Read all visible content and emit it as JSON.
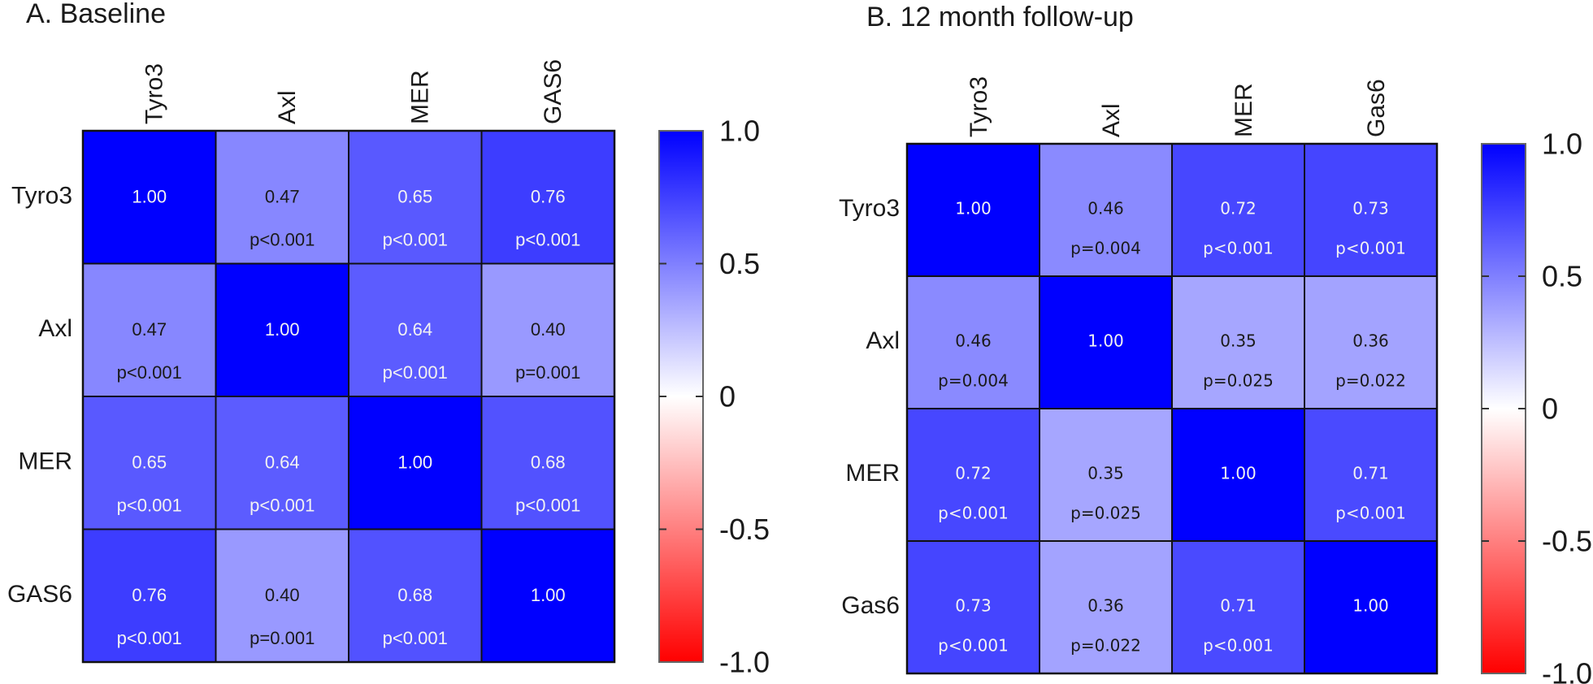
{
  "chart_data": [
    {
      "type": "heatmap",
      "title": "A. Baseline",
      "variables_x": [
        "Tyro3",
        "Axl",
        "MER",
        "GAS6"
      ],
      "variables_y": [
        "Tyro3",
        "Axl",
        "MER",
        "GAS6"
      ],
      "values": [
        [
          1.0,
          0.47,
          0.65,
          0.76
        ],
        [
          0.47,
          1.0,
          0.64,
          0.4
        ],
        [
          0.65,
          0.64,
          1.0,
          0.68
        ],
        [
          0.76,
          0.4,
          0.68,
          1.0
        ]
      ],
      "value_labels": [
        [
          "1.00",
          "0.47",
          "0.65",
          "0.76"
        ],
        [
          "0.47",
          "1.00",
          "0.64",
          "0.40"
        ],
        [
          "0.65",
          "0.64",
          "1.00",
          "0.68"
        ],
        [
          "0.76",
          "0.40",
          "0.68",
          "1.00"
        ]
      ],
      "p_values": [
        [
          "",
          "p<0.001",
          "p<0.001",
          "p<0.001"
        ],
        [
          "p<0.001",
          "",
          "p<0.001",
          "p=0.001"
        ],
        [
          "p<0.001",
          "p<0.001",
          "",
          "p<0.001"
        ],
        [
          "p<0.001",
          "p=0.001",
          "p<0.001",
          ""
        ]
      ],
      "colorbar": {
        "range": [
          -1.0,
          1.0
        ],
        "ticks": [
          1.0,
          0.5,
          0,
          -0.5,
          -1.0
        ],
        "tick_labels": [
          "1.0",
          "0.5",
          "0",
          "-0.5",
          "-1.0"
        ],
        "colors": {
          "max": "#0000ff",
          "mid": "#ffffff",
          "min": "#ff0000"
        },
        "placement": "right"
      },
      "grid": false
    },
    {
      "type": "heatmap",
      "title": "B. 12 month follow-up",
      "variables_x": [
        "Tyro3",
        "Axl",
        "MER",
        "Gas6"
      ],
      "variables_y": [
        "Tyro3",
        "Axl",
        "MER",
        "Gas6"
      ],
      "values": [
        [
          1.0,
          0.46,
          0.72,
          0.73
        ],
        [
          0.46,
          1.0,
          0.35,
          0.36
        ],
        [
          0.72,
          0.35,
          1.0,
          0.71
        ],
        [
          0.73,
          0.36,
          0.71,
          1.0
        ]
      ],
      "value_labels": [
        [
          "1.00",
          "0.46",
          "0.72",
          "0.73"
        ],
        [
          "0.46",
          "1.00",
          "0.35",
          "0.36"
        ],
        [
          "0.72",
          "0.35",
          "1.00",
          "0.71"
        ],
        [
          "0.73",
          "0.36",
          "0.71",
          "1.00"
        ]
      ],
      "p_values": [
        [
          "",
          "p=0.004",
          "p<0.001",
          "p<0.001"
        ],
        [
          "p=0.004",
          "",
          "p=0.025",
          "p=0.022"
        ],
        [
          "p<0.001",
          "p=0.025",
          "",
          "p<0.001"
        ],
        [
          "p<0.001",
          "p=0.022",
          "p<0.001",
          ""
        ]
      ],
      "colorbar": {
        "range": [
          -1.0,
          1.0
        ],
        "ticks": [
          1.0,
          0.5,
          0,
          -0.5,
          -1.0
        ],
        "tick_labels": [
          "1.0",
          "0.5",
          "0",
          "-0.5",
          "-1.0"
        ],
        "colors": {
          "max": "#0000ff",
          "mid": "#ffffff",
          "min": "#ff0000"
        },
        "placement": "right"
      },
      "grid": false
    }
  ],
  "colors": {
    "positive": "#0000ff",
    "zero": "#ffffff",
    "negative": "#ff0000",
    "cell_border": "#111111",
    "colorbar_border": "#666666",
    "text_dark": "#1a1a1a",
    "text_light": "#f2f2f2"
  }
}
